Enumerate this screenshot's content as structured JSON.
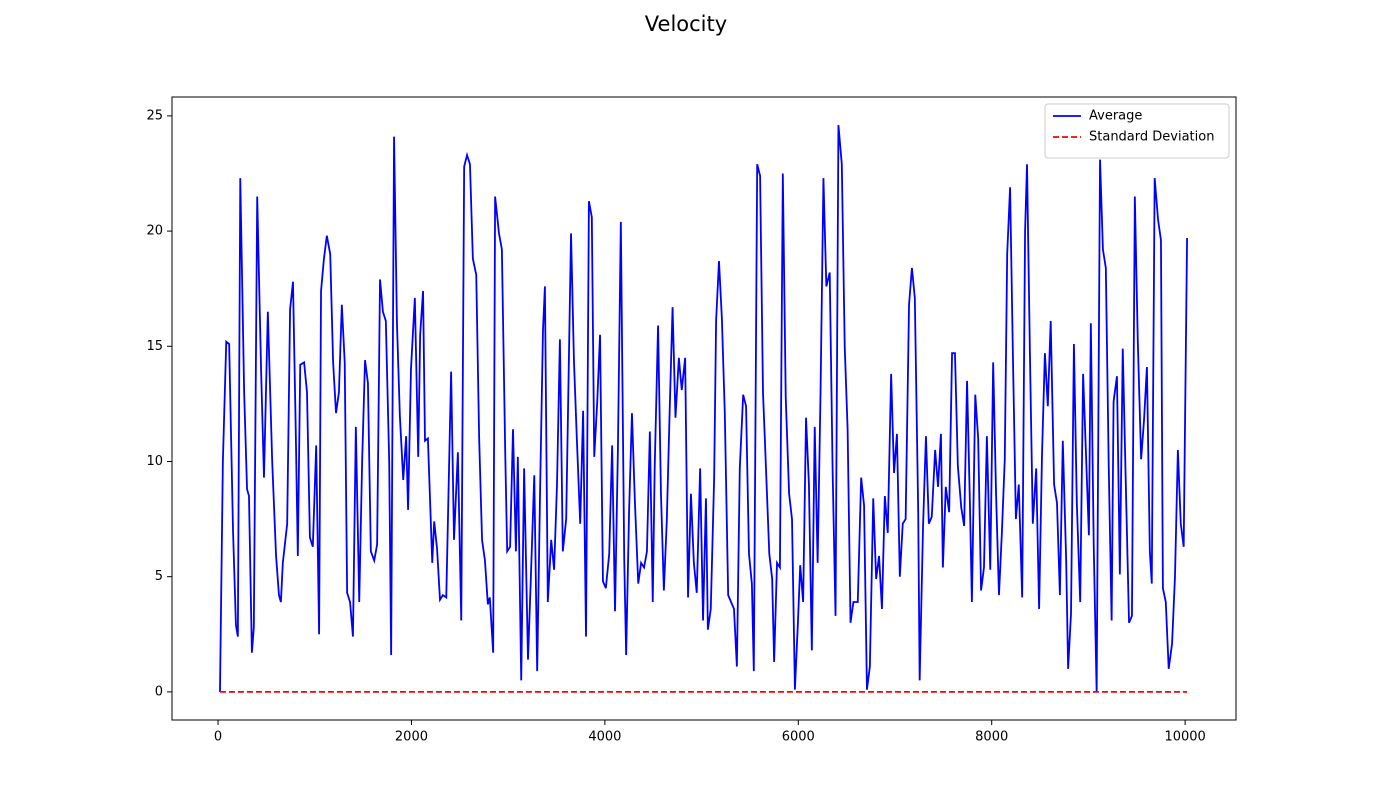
{
  "chart_data": {
    "type": "line",
    "title": "Velocity",
    "x": [
      20,
      50,
      85,
      115,
      155,
      185,
      205,
      230,
      270,
      300,
      320,
      350,
      370,
      405,
      445,
      475,
      515,
      560,
      600,
      630,
      650,
      670,
      715,
      745,
      775,
      805,
      825,
      850,
      890,
      920,
      950,
      980,
      1015,
      1045,
      1065,
      1095,
      1125,
      1160,
      1190,
      1220,
      1250,
      1280,
      1310,
      1335,
      1365,
      1395,
      1425,
      1460,
      1490,
      1520,
      1550,
      1580,
      1615,
      1645,
      1675,
      1705,
      1735,
      1770,
      1790,
      1820,
      1850,
      1880,
      1915,
      1945,
      1965,
      1995,
      2035,
      2070,
      2090,
      2120,
      2140,
      2170,
      2215,
      2235,
      2265,
      2295,
      2325,
      2360,
      2410,
      2440,
      2480,
      2515,
      2545,
      2575,
      2605,
      2635,
      2670,
      2700,
      2730,
      2760,
      2790,
      2810,
      2845,
      2865,
      2905,
      2935,
      2970,
      2990,
      3020,
      3050,
      3080,
      3100,
      3135,
      3165,
      3205,
      3235,
      3270,
      3300,
      3330,
      3360,
      3380,
      3410,
      3445,
      3475,
      3505,
      3535,
      3565,
      3600,
      3650,
      3680,
      3710,
      3745,
      3775,
      3805,
      3835,
      3865,
      3890,
      3920,
      3950,
      3980,
      4010,
      4045,
      4075,
      4105,
      4135,
      4165,
      4200,
      4220,
      4250,
      4280,
      4310,
      4345,
      4375,
      4405,
      4435,
      4465,
      4495,
      4515,
      4550,
      4580,
      4610,
      4640,
      4670,
      4700,
      4730,
      4765,
      4795,
      4830,
      4860,
      4890,
      4920,
      4950,
      4985,
      5015,
      5045,
      5065,
      5095,
      5130,
      5150,
      5180,
      5210,
      5240,
      5275,
      5305,
      5335,
      5365,
      5395,
      5430,
      5460,
      5490,
      5520,
      5540,
      5575,
      5605,
      5635,
      5665,
      5700,
      5730,
      5750,
      5780,
      5810,
      5840,
      5870,
      5905,
      5935,
      5965,
      5995,
      6020,
      6050,
      6080,
      6110,
      6140,
      6170,
      6200,
      6230,
      6260,
      6290,
      6325,
      6355,
      6385,
      6415,
      6450,
      6480,
      6510,
      6540,
      6570,
      6615,
      6650,
      6680,
      6710,
      6740,
      6775,
      6805,
      6835,
      6865,
      6895,
      6925,
      6960,
      6990,
      7020,
      7050,
      7080,
      7110,
      7145,
      7175,
      7205,
      7240,
      7255,
      7290,
      7320,
      7350,
      7380,
      7415,
      7445,
      7475,
      7495,
      7525,
      7560,
      7590,
      7620,
      7650,
      7685,
      7715,
      7745,
      7775,
      7795,
      7830,
      7860,
      7890,
      7920,
      7950,
      7985,
      8015,
      8045,
      8075,
      8105,
      8135,
      8160,
      8190,
      8220,
      8250,
      8280,
      8315,
      8345,
      8365,
      8395,
      8425,
      8460,
      8490,
      8520,
      8550,
      8580,
      8610,
      8645,
      8675,
      8705,
      8735,
      8770,
      8790,
      8820,
      8850,
      8880,
      8915,
      8945,
      8975,
      9005,
      9025,
      9055,
      9085,
      9120,
      9150,
      9180,
      9210,
      9240,
      9260,
      9295,
      9325,
      9355,
      9385,
      9420,
      9450,
      9480,
      9510,
      9545,
      9575,
      9605,
      9635,
      9655,
      9685,
      9720,
      9750,
      9770,
      9800,
      9830,
      9865,
      9895,
      9925,
      9955,
      9985,
      10020
    ],
    "series": [
      {
        "name": "Average",
        "color": "#0000ff",
        "dash": false,
        "values": [
          0,
          10,
          15.2,
          15.1,
          7,
          2.9,
          2.4,
          22.3,
          13,
          8.8,
          8.5,
          1.7,
          2.8,
          21.5,
          14,
          9.3,
          16.5,
          10,
          5.9,
          4.2,
          3.9,
          5.6,
          7.3,
          16.6,
          17.8,
          11,
          5.9,
          14.2,
          14.3,
          13,
          6.7,
          6.3,
          10.7,
          2.5,
          17.4,
          18.8,
          19.8,
          19,
          14.3,
          12.1,
          13,
          16.8,
          14.3,
          4.3,
          3.9,
          2.4,
          11.5,
          3.9,
          10,
          14.4,
          13.4,
          6.1,
          5.7,
          6.4,
          17.9,
          16.5,
          16.1,
          10,
          1.6,
          24.1,
          16,
          12,
          9.2,
          11.1,
          7.9,
          14,
          17.1,
          10.2,
          15.5,
          17.4,
          10.9,
          11,
          5.6,
          7.4,
          6.2,
          4,
          4.2,
          4.1,
          13.9,
          6.6,
          10.4,
          3.1,
          22.8,
          23.3,
          22.9,
          18.8,
          18.1,
          11,
          6.6,
          5.7,
          3.8,
          4.1,
          1.7,
          21.5,
          19.9,
          19.2,
          10.3,
          6.1,
          6.3,
          11.4,
          6.1,
          10.2,
          0.5,
          9.7,
          1.4,
          5,
          9.4,
          0.9,
          8.7,
          15.7,
          17.6,
          3.9,
          6.6,
          5.3,
          9,
          15.3,
          6.1,
          7.5,
          19.9,
          14.4,
          11,
          7.3,
          12.2,
          2.4,
          21.3,
          20.6,
          10.2,
          12.5,
          15.5,
          4.8,
          4.5,
          6,
          10.7,
          3.5,
          10.6,
          20.4,
          5.8,
          1.6,
          7.8,
          12.1,
          8.3,
          4.7,
          5.6,
          5.4,
          6.1,
          11.3,
          3.9,
          9.7,
          15.9,
          8.6,
          4.4,
          7.4,
          12.2,
          16.7,
          11.9,
          14.5,
          13.1,
          14.5,
          4.1,
          8.6,
          5.6,
          4.3,
          9.7,
          3.1,
          8.4,
          2.7,
          3.6,
          9.3,
          16.1,
          18.7,
          16.2,
          12.1,
          4.2,
          3.9,
          3.6,
          1.1,
          9.7,
          12.9,
          12.4,
          6,
          4.7,
          0.9,
          22.9,
          22.4,
          13,
          9.8,
          6,
          4.9,
          1.3,
          5.6,
          5.4,
          22.5,
          12.8,
          8.6,
          7.5,
          0.1,
          2.9,
          5.5,
          3.9,
          11.9,
          9,
          1.8,
          11.5,
          5.6,
          13,
          22.3,
          17.6,
          18.2,
          9.6,
          3.3,
          24.6,
          22.9,
          15,
          11.4,
          3,
          3.9,
          3.9,
          9.3,
          8.1,
          0.1,
          1.1,
          8.4,
          4.9,
          5.9,
          3.6,
          8.5,
          6.9,
          13.8,
          9.5,
          11.2,
          5,
          7.3,
          7.5,
          16.8,
          18.4,
          17.1,
          7.8,
          0.5,
          7.2,
          11.1,
          7.3,
          7.6,
          10.5,
          8.9,
          11.2,
          5.4,
          8.9,
          7.8,
          14.7,
          14.7,
          9.8,
          8,
          7.2,
          13.5,
          8.1,
          3.9,
          12.9,
          11,
          4.4,
          5.4,
          11.1,
          5.3,
          14.3,
          8.6,
          4.2,
          6.9,
          10.1,
          19,
          21.9,
          14.4,
          7.5,
          9,
          4.1,
          20,
          22.9,
          14.7,
          7.3,
          9.7,
          3.6,
          10.3,
          14.7,
          12.4,
          16.1,
          9,
          8.2,
          4.2,
          10.9,
          5.7,
          1,
          3.4,
          15.1,
          8.2,
          3.9,
          13.8,
          10.3,
          6.8,
          16,
          6.3,
          0,
          23.1,
          19.2,
          18.4,
          9.8,
          3.1,
          12.6,
          13.7,
          5.1,
          14.9,
          9.3,
          3,
          3.3,
          21.5,
          15.3,
          10.1,
          11.8,
          14.1,
          6.1,
          4.7,
          22.3,
          20.5,
          19.6,
          4.5,
          3.9,
          1,
          2.1,
          5,
          10.5,
          7.3,
          6.3,
          19.7
        ]
      },
      {
        "name": "Standard Deviation",
        "color": "#ff0000",
        "dash": true,
        "x": [
          20,
          10020
        ],
        "values": [
          0,
          0
        ]
      }
    ],
    "xlim": [
      -476,
      10526
    ],
    "ylim": [
      -1.22,
      25.82
    ],
    "xticks": [
      0,
      2000,
      4000,
      6000,
      8000,
      10000
    ],
    "yticks": [
      0,
      5,
      10,
      15,
      20,
      25
    ],
    "legend": "upper right"
  }
}
